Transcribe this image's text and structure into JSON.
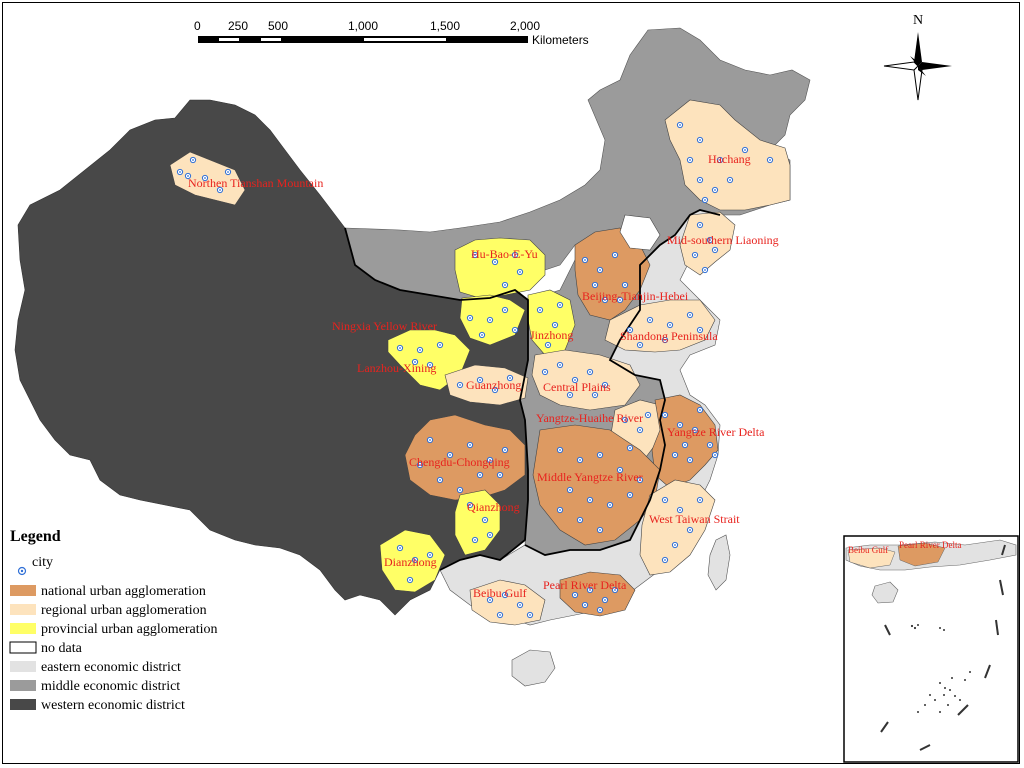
{
  "scale_bar": {
    "ticks": [
      "0",
      "250",
      "500",
      "1,000",
      "1,500",
      "2,000"
    ],
    "unit": "Kilometers"
  },
  "north_label": "N",
  "legend": {
    "title": "Legend",
    "items": [
      {
        "label": "city",
        "kind": "city"
      },
      {
        "label": "national urban agglomeration",
        "color": "#dd9a62"
      },
      {
        "label": "regional urban agglomeration",
        "color": "#fde3bd"
      },
      {
        "label": "provincial urban agglomeration",
        "color": "#ffff66"
      },
      {
        "label": "no data",
        "color": "#ffffff"
      },
      {
        "label": "eastern economic district",
        "color": "#e2e2e2"
      },
      {
        "label": "middle economic district",
        "color": "#9b9b9b"
      },
      {
        "label": "western economic district",
        "color": "#484848"
      }
    ]
  },
  "agglomerations": [
    {
      "name": "Northen Tianshan Mountain",
      "level": "regional"
    },
    {
      "name": "Hachang",
      "level": "regional"
    },
    {
      "name": "Mid-southern Liaoning",
      "level": "regional"
    },
    {
      "name": "Hu-Bao-E-Yu",
      "level": "provincial"
    },
    {
      "name": "Beijing-Tianjin-Hebei",
      "level": "national"
    },
    {
      "name": "Ningxia Yellow River",
      "level": "provincial"
    },
    {
      "name": "Jinzhong",
      "level": "provincial"
    },
    {
      "name": "Shandong Peninsula",
      "level": "regional"
    },
    {
      "name": "Lanzhou-Xining",
      "level": "provincial"
    },
    {
      "name": "Guanzhong",
      "level": "regional"
    },
    {
      "name": "Central Plains",
      "level": "regional"
    },
    {
      "name": "Yangtze-Huaihe River",
      "level": "regional"
    },
    {
      "name": "Yangtze River Delta",
      "level": "national"
    },
    {
      "name": "Chengdu-Chongqing",
      "level": "national"
    },
    {
      "name": "Middle Yangtze River",
      "level": "national"
    },
    {
      "name": "West Taiwan Strait",
      "level": "regional"
    },
    {
      "name": "Qianzhong",
      "level": "provincial"
    },
    {
      "name": "Dianzhong",
      "level": "provincial"
    },
    {
      "name": "Beibu Gulf",
      "level": "regional"
    },
    {
      "name": "Pearl River Delta",
      "level": "national"
    }
  ],
  "inset": {
    "labels": [
      "Beibu Gulf",
      "Pearl River Delta"
    ]
  },
  "colors": {
    "national": "#dd9a62",
    "regional": "#fde3bd",
    "provincial": "#ffff66",
    "eastern": "#e2e2e2",
    "middle": "#9b9b9b",
    "western": "#484848",
    "label": "#e8231e",
    "city": "#2f6fd6"
  }
}
